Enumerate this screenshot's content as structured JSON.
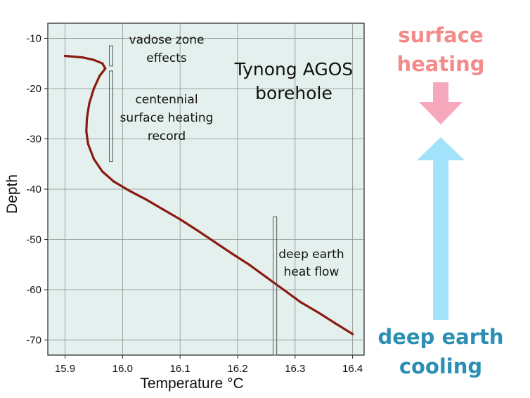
{
  "chart_data": {
    "type": "line",
    "title": "",
    "xlabel": "Temperature °C",
    "ylabel": "Depth",
    "xlim": [
      15.87,
      16.42
    ],
    "ylim": [
      -73,
      -7
    ],
    "xticks": [
      "15.9",
      "16.0",
      "16.1",
      "16.2",
      "16.3",
      "16.4"
    ],
    "xtick_values": [
      15.9,
      16.0,
      16.1,
      16.2,
      16.3,
      16.4
    ],
    "yticks": [
      "-10",
      "-20",
      "-30",
      "-40",
      "-50",
      "-60",
      "-70"
    ],
    "ytick_values": [
      -10,
      -20,
      -30,
      -40,
      -50,
      -60,
      -70
    ],
    "grid": true,
    "plot_background": "#e3f0ee",
    "series": [
      {
        "color": "#8b1a10",
        "x": [
          15.9,
          15.93,
          15.95,
          15.965,
          15.97,
          15.96,
          15.95,
          15.942,
          15.938,
          15.937,
          15.94,
          15.95,
          15.965,
          15.985,
          16.01,
          16.04,
          16.07,
          16.1,
          16.13,
          16.16,
          16.19,
          16.22,
          16.25,
          16.28,
          16.31,
          16.34,
          16.37,
          16.4
        ],
        "y": [
          -13.5,
          -13.8,
          -14.3,
          -15.0,
          -16.0,
          -17.5,
          -20.0,
          -23.0,
          -26.0,
          -28.5,
          -31.0,
          -34.0,
          -36.5,
          -38.5,
          -40.2,
          -42.0,
          -44.0,
          -46.0,
          -48.2,
          -50.5,
          -52.8,
          -55.0,
          -57.5,
          -60.0,
          -62.5,
          -64.5,
          -66.7,
          -68.8
        ]
      }
    ],
    "annotations": {
      "vadose_line1": "vadose zone",
      "vadose_line2": "effects",
      "title_line1": "Tynong AGOS",
      "title_line2": "borehole",
      "centennial_line1": "centennial",
      "centennial_line2": "surface heating",
      "centennial_line3": "record",
      "deep_line1": "deep earth",
      "deep_line2": "heat flow"
    },
    "brackets": [
      {
        "x": 15.98,
        "y_top": -11.5,
        "y_bottom": -15.5
      },
      {
        "x": 15.98,
        "y_top": -16.5,
        "y_bottom": -34.5
      },
      {
        "x": 16.265,
        "y_top": -45.5,
        "y_bottom": -73
      }
    ]
  },
  "side_labels": {
    "surface_line1": "surface",
    "surface_line2": "heating",
    "surface_color": "#f48a8a",
    "surface_arrow_color": "#f6a8bd",
    "deep_line1": "deep earth",
    "deep_line2": "cooling",
    "deep_color": "#2a8fb3",
    "deep_arrow_color": "#a3e2fb"
  }
}
